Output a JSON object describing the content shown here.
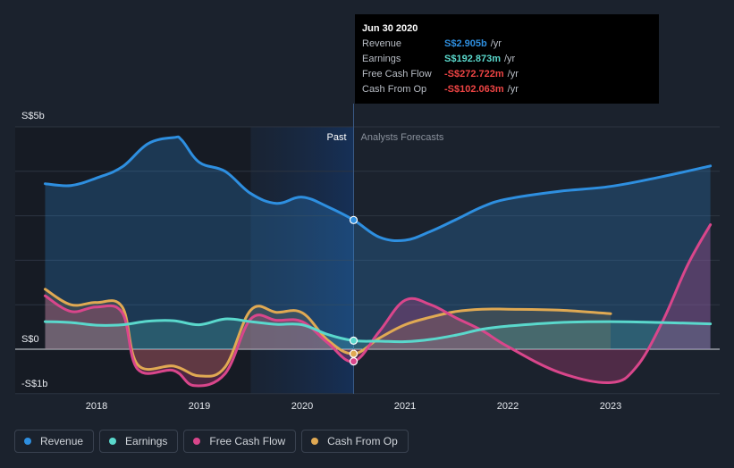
{
  "chart_data": {
    "type": "line",
    "title": "",
    "yAxis": {
      "unit": "S$b",
      "min": -1,
      "max": 5,
      "tick_labels": [
        "S$5b",
        "S$0",
        "-S$1b"
      ],
      "tick_values": [
        5,
        0,
        -1
      ]
    },
    "xAxis": {
      "tick_labels": [
        "2018",
        "2019",
        "2020",
        "2021",
        "2022",
        "2023"
      ],
      "tick_values": [
        2018,
        2019,
        2020,
        2021,
        2022,
        2023
      ],
      "min": 2017.07,
      "max": 2023.97
    },
    "divider": {
      "x": 2020.5,
      "past_label": "Past",
      "forecast_label": "Analysts Forecasts"
    },
    "series": [
      {
        "name": "Revenue",
        "color": "#2e8fe0",
        "points": [
          [
            2017.5,
            3.72
          ],
          [
            2017.75,
            3.68
          ],
          [
            2018.0,
            3.85
          ],
          [
            2018.25,
            4.1
          ],
          [
            2018.5,
            4.62
          ],
          [
            2018.75,
            4.76
          ],
          [
            2018.83,
            4.7
          ],
          [
            2019.0,
            4.2
          ],
          [
            2019.25,
            4.0
          ],
          [
            2019.5,
            3.5
          ],
          [
            2019.75,
            3.28
          ],
          [
            2020.0,
            3.42
          ],
          [
            2020.25,
            3.2
          ],
          [
            2020.5,
            2.905
          ],
          [
            2020.75,
            2.52
          ],
          [
            2021.0,
            2.45
          ],
          [
            2021.25,
            2.65
          ],
          [
            2021.5,
            2.92
          ],
          [
            2021.75,
            3.2
          ],
          [
            2022.0,
            3.38
          ],
          [
            2022.5,
            3.55
          ],
          [
            2023.0,
            3.66
          ],
          [
            2023.5,
            3.88
          ],
          [
            2023.97,
            4.12
          ]
        ]
      },
      {
        "name": "Earnings",
        "color": "#5ad8cc",
        "points": [
          [
            2017.5,
            0.62
          ],
          [
            2017.75,
            0.6
          ],
          [
            2018.0,
            0.54
          ],
          [
            2018.25,
            0.55
          ],
          [
            2018.5,
            0.63
          ],
          [
            2018.75,
            0.64
          ],
          [
            2019.0,
            0.55
          ],
          [
            2019.25,
            0.68
          ],
          [
            2019.5,
            0.62
          ],
          [
            2019.75,
            0.56
          ],
          [
            2020.0,
            0.55
          ],
          [
            2020.25,
            0.33
          ],
          [
            2020.5,
            0.193
          ],
          [
            2020.75,
            0.18
          ],
          [
            2021.0,
            0.17
          ],
          [
            2021.25,
            0.22
          ],
          [
            2021.5,
            0.32
          ],
          [
            2021.75,
            0.45
          ],
          [
            2022.0,
            0.52
          ],
          [
            2022.5,
            0.6
          ],
          [
            2023.0,
            0.62
          ],
          [
            2023.5,
            0.6
          ],
          [
            2023.97,
            0.57
          ]
        ]
      },
      {
        "name": "Free Cash Flow",
        "color": "#d9468b",
        "points": [
          [
            2017.5,
            1.2
          ],
          [
            2017.75,
            0.85
          ],
          [
            2018.0,
            0.95
          ],
          [
            2018.25,
            0.82
          ],
          [
            2018.4,
            -0.45
          ],
          [
            2018.75,
            -0.48
          ],
          [
            2018.95,
            -0.82
          ],
          [
            2019.25,
            -0.55
          ],
          [
            2019.5,
            0.68
          ],
          [
            2019.75,
            0.65
          ],
          [
            2020.0,
            0.62
          ],
          [
            2020.25,
            0.14
          ],
          [
            2020.5,
            -0.273
          ],
          [
            2020.75,
            0.4
          ],
          [
            2021.0,
            1.1
          ],
          [
            2021.25,
            1.0
          ],
          [
            2021.5,
            0.7
          ],
          [
            2021.75,
            0.42
          ],
          [
            2022.0,
            0.06
          ],
          [
            2022.5,
            -0.52
          ],
          [
            2023.0,
            -0.75
          ],
          [
            2023.25,
            -0.4
          ],
          [
            2023.5,
            0.6
          ],
          [
            2023.75,
            1.9
          ],
          [
            2023.97,
            2.8
          ]
        ]
      },
      {
        "name": "Cash From Op",
        "color": "#e0a953",
        "points": [
          [
            2017.5,
            1.35
          ],
          [
            2017.75,
            1.0
          ],
          [
            2018.0,
            1.05
          ],
          [
            2018.25,
            0.95
          ],
          [
            2018.4,
            -0.35
          ],
          [
            2018.75,
            -0.38
          ],
          [
            2019.0,
            -0.6
          ],
          [
            2019.25,
            -0.4
          ],
          [
            2019.5,
            0.88
          ],
          [
            2019.75,
            0.83
          ],
          [
            2020.0,
            0.82
          ],
          [
            2020.25,
            0.2
          ],
          [
            2020.5,
            -0.102
          ],
          [
            2020.75,
            0.25
          ],
          [
            2021.0,
            0.55
          ],
          [
            2021.25,
            0.72
          ],
          [
            2021.5,
            0.85
          ],
          [
            2021.75,
            0.9
          ],
          [
            2022.0,
            0.9
          ],
          [
            2022.5,
            0.88
          ],
          [
            2023.0,
            0.8
          ]
        ]
      }
    ]
  },
  "tooltip": {
    "date": "Jun 30 2020",
    "rows": [
      {
        "label": "Revenue",
        "value": "S$2.905b",
        "unit": "/yr",
        "color": "#2e8fe0"
      },
      {
        "label": "Earnings",
        "value": "S$192.873m",
        "unit": "/yr",
        "color": "#5ad8cc"
      },
      {
        "label": "Free Cash Flow",
        "value": "-S$272.722m",
        "unit": "/yr",
        "color": "#ee4444"
      },
      {
        "label": "Cash From Op",
        "value": "-S$102.063m",
        "unit": "/yr",
        "color": "#ee4444"
      }
    ]
  },
  "legend": [
    {
      "label": "Revenue",
      "color": "#2e8fe0"
    },
    {
      "label": "Earnings",
      "color": "#5ad8cc"
    },
    {
      "label": "Free Cash Flow",
      "color": "#d9468b"
    },
    {
      "label": "Cash From Op",
      "color": "#e0a953"
    }
  ]
}
